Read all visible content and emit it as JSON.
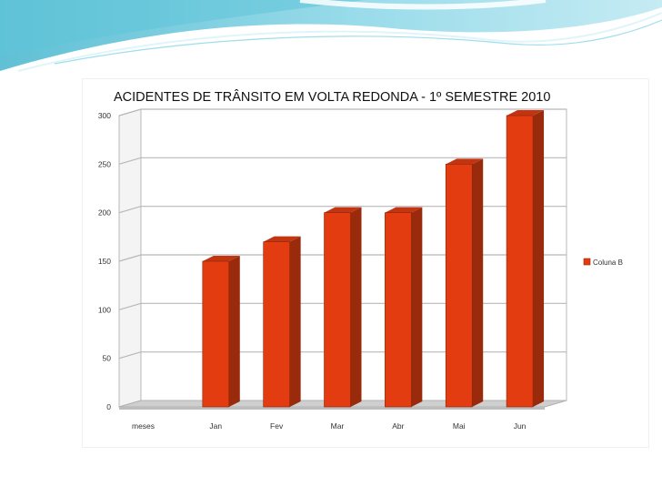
{
  "colors": {
    "bar_front": "#e23c10",
    "bar_side": "#9a2a0c",
    "bar_top": "#c23510",
    "grid": "#b8b8b8",
    "banner_dark": "#5fc4d8",
    "banner_light": "#bfe9f2"
  },
  "chart_data": {
    "type": "bar",
    "title": "ACIDENTES DE TRÂNSITO EM VOLTA REDONDA - 1º SEMESTRE 2010",
    "categories": [
      "meses",
      "Jan",
      "Fev",
      "Mar",
      "Abr",
      "Mai",
      "Jun"
    ],
    "series": [
      {
        "name": "Coluna B",
        "values": [
          null,
          150,
          170,
          200,
          200,
          250,
          300
        ]
      }
    ],
    "ylim": [
      0,
      300
    ],
    "yticks": [
      0,
      50,
      100,
      150,
      200,
      250,
      300
    ],
    "grid": true,
    "legend_position": "right",
    "style": "3d"
  }
}
